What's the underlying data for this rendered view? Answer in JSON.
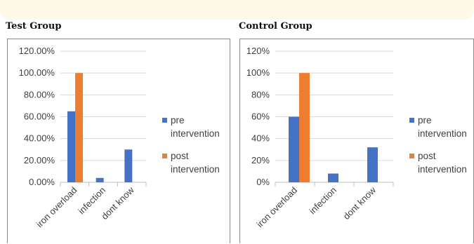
{
  "colors": {
    "pre": "#4472c4",
    "post": "#ed7d31",
    "grid": "#d9d9d9"
  },
  "charts": [
    {
      "title": "Test Group"
    },
    {
      "title": "Control Group"
    }
  ],
  "chart_data": [
    {
      "type": "bar",
      "title": "Test Group",
      "categories": [
        "iron overload",
        "infection",
        "dont know"
      ],
      "series": [
        {
          "name": "pre intervention",
          "values": [
            65,
            4,
            30
          ]
        },
        {
          "name": "post intervention",
          "values": [
            100,
            0,
            0
          ]
        }
      ],
      "ylim": [
        0,
        120
      ],
      "yticks": [
        "0.00%",
        "20.00%",
        "40.00%",
        "60.00%",
        "80.00%",
        "100.00%",
        "120.00%"
      ],
      "xlabel": "",
      "ylabel": "",
      "legend": "right",
      "grid": true
    },
    {
      "type": "bar",
      "title": "Control Group",
      "categories": [
        "iron overload",
        "infection",
        "dont know"
      ],
      "series": [
        {
          "name": "pre intervention",
          "values": [
            60,
            8,
            32
          ]
        },
        {
          "name": "post intervention",
          "values": [
            100,
            0,
            0
          ]
        }
      ],
      "ylim": [
        0,
        120
      ],
      "yticks": [
        "0%",
        "20%",
        "40%",
        "60%",
        "80%",
        "100%",
        "120%"
      ],
      "xlabel": "",
      "ylabel": "",
      "legend": "right",
      "grid": true
    }
  ]
}
